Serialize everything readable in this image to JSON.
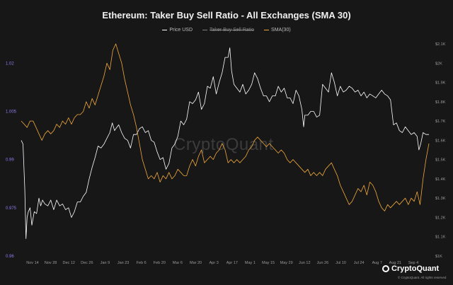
{
  "chart_data": {
    "type": "line",
    "title": "Ethereum: Taker Buy Sell Ratio - All Exchanges (SMA 30)",
    "legend_position": "top-center",
    "grid": false,
    "x_ticks": [
      "Nov 14",
      "Nov 28",
      "Dec 12",
      "Dec 26",
      "Jan 9",
      "Jan 23",
      "Feb 6",
      "Feb 20",
      "Mar 6",
      "Mar 20",
      "Apr 3",
      "Apr 17",
      "May 1",
      "May 15",
      "May 29",
      "Jun 12",
      "Jun 26",
      "Jul 10",
      "Jul 24",
      "Aug 7",
      "Aug 21",
      "Sep 4"
    ],
    "left_axis": {
      "ticks": [
        "1.02",
        "1.005",
        "0.99",
        "0.975",
        "0.96"
      ],
      "range": [
        0.96,
        1.026
      ]
    },
    "right_axis": {
      "ticks": [
        "$2.1K",
        "$2K",
        "$1.9K",
        "$1.8K",
        "$1.7K",
        "$1.6K",
        "$1.5K",
        "$1.4K",
        "$1.3K",
        "$1.2K",
        "$1.1K",
        "$1K"
      ],
      "range": [
        1000,
        2100
      ]
    },
    "series": [
      {
        "name": "Price USD",
        "axis": "right",
        "color": "#ffffff",
        "visible": true,
        "points": [
          [
            0,
            1600
          ],
          [
            0.3,
            1580
          ],
          [
            0.6,
            1350
          ],
          [
            0.8,
            1090
          ],
          [
            1.0,
            1200
          ],
          [
            1.2,
            1230
          ],
          [
            1.5,
            1250
          ],
          [
            1.8,
            1160
          ],
          [
            2.2,
            1230
          ],
          [
            2.6,
            1220
          ],
          [
            3.0,
            1300
          ],
          [
            3.3,
            1260
          ],
          [
            3.6,
            1290
          ],
          [
            4.0,
            1270
          ],
          [
            4.5,
            1260
          ],
          [
            5.0,
            1290
          ],
          [
            5.5,
            1240
          ],
          [
            6.0,
            1290
          ],
          [
            6.5,
            1260
          ],
          [
            7.0,
            1270
          ],
          [
            7.5,
            1240
          ],
          [
            8.0,
            1250
          ],
          [
            8.5,
            1200
          ],
          [
            9.0,
            1230
          ],
          [
            9.5,
            1280
          ],
          [
            10.0,
            1280
          ],
          [
            10.5,
            1310
          ],
          [
            11.0,
            1330
          ],
          [
            11.5,
            1400
          ],
          [
            12.0,
            1460
          ],
          [
            12.5,
            1510
          ],
          [
            13.0,
            1570
          ],
          [
            13.5,
            1560
          ],
          [
            14.0,
            1580
          ],
          [
            14.5,
            1610
          ],
          [
            15.0,
            1640
          ],
          [
            15.4,
            1690
          ],
          [
            15.8,
            1650
          ],
          [
            16.0,
            1660
          ],
          [
            16.5,
            1680
          ],
          [
            17.0,
            1640
          ],
          [
            17.5,
            1610
          ],
          [
            18.0,
            1600
          ],
          [
            18.5,
            1560
          ],
          [
            19.0,
            1630
          ],
          [
            19.5,
            1630
          ],
          [
            20.0,
            1660
          ],
          [
            20.5,
            1670
          ],
          [
            21.0,
            1640
          ],
          [
            21.5,
            1650
          ],
          [
            22.0,
            1600
          ],
          [
            22.5,
            1590
          ],
          [
            23.0,
            1540
          ],
          [
            23.5,
            1500
          ],
          [
            24.0,
            1510
          ],
          [
            24.5,
            1450
          ],
          [
            25.0,
            1480
          ],
          [
            25.5,
            1560
          ],
          [
            26.0,
            1580
          ],
          [
            26.5,
            1620
          ],
          [
            27.0,
            1700
          ],
          [
            27.5,
            1680
          ],
          [
            28.0,
            1710
          ],
          [
            28.5,
            1800
          ],
          [
            29.0,
            1790
          ],
          [
            29.5,
            1810
          ],
          [
            30.0,
            1850
          ],
          [
            30.5,
            1760
          ],
          [
            31.0,
            1790
          ],
          [
            31.5,
            1880
          ],
          [
            32.0,
            1870
          ],
          [
            32.5,
            1930
          ],
          [
            33.0,
            1840
          ],
          [
            33.5,
            1900
          ],
          [
            34.0,
            1950
          ],
          [
            34.5,
            2030
          ],
          [
            35.0,
            2030
          ],
          [
            35.3,
            2080
          ],
          [
            35.6,
            1960
          ],
          [
            36.0,
            1890
          ],
          [
            36.5,
            1870
          ],
          [
            37.0,
            1850
          ],
          [
            37.5,
            1890
          ],
          [
            38.0,
            1840
          ],
          [
            38.5,
            1860
          ],
          [
            39.0,
            1890
          ],
          [
            39.5,
            1950
          ],
          [
            40.0,
            1920
          ],
          [
            40.5,
            1870
          ],
          [
            41.0,
            1830
          ],
          [
            41.5,
            1830
          ],
          [
            42.0,
            1800
          ],
          [
            42.5,
            1830
          ],
          [
            43.0,
            1830
          ],
          [
            43.5,
            1880
          ],
          [
            44.0,
            1850
          ],
          [
            44.5,
            1870
          ],
          [
            45.0,
            1820
          ],
          [
            45.5,
            1820
          ],
          [
            46.0,
            1790
          ],
          [
            46.5,
            1860
          ],
          [
            47.0,
            1830
          ],
          [
            47.5,
            1760
          ],
          [
            47.8,
            1670
          ],
          [
            48.0,
            1730
          ],
          [
            48.5,
            1730
          ],
          [
            49.0,
            1750
          ],
          [
            49.5,
            1750
          ],
          [
            50.0,
            1720
          ],
          [
            50.5,
            1730
          ],
          [
            51.0,
            1890
          ],
          [
            51.5,
            1870
          ],
          [
            52.0,
            1850
          ],
          [
            52.5,
            1950
          ],
          [
            53.0,
            1900
          ],
          [
            53.5,
            1830
          ],
          [
            54.0,
            1880
          ],
          [
            54.5,
            1850
          ],
          [
            55.0,
            1860
          ],
          [
            55.5,
            1880
          ],
          [
            56.0,
            1870
          ],
          [
            56.5,
            1850
          ],
          [
            57.0,
            1860
          ],
          [
            57.5,
            1830
          ],
          [
            58.0,
            1850
          ],
          [
            58.5,
            1820
          ],
          [
            59.0,
            1840
          ],
          [
            59.5,
            1830
          ],
          [
            60.0,
            1820
          ],
          [
            60.5,
            1840
          ],
          [
            61.0,
            1860
          ],
          [
            61.5,
            1840
          ],
          [
            62.0,
            1830
          ],
          [
            62.5,
            1810
          ],
          [
            63.0,
            1680
          ],
          [
            63.5,
            1690
          ],
          [
            64.0,
            1650
          ],
          [
            64.5,
            1640
          ],
          [
            65.0,
            1670
          ],
          [
            65.5,
            1650
          ],
          [
            66.0,
            1630
          ],
          [
            66.5,
            1640
          ],
          [
            67.0,
            1620
          ],
          [
            67.3,
            1550
          ],
          [
            67.6,
            1580
          ],
          [
            68.0,
            1640
          ],
          [
            68.5,
            1630
          ],
          [
            69.0,
            1630
          ]
        ]
      },
      {
        "name": "Taker Buy Sell Ratio",
        "axis": "left",
        "color": "#7d7d7d",
        "visible": false,
        "points": []
      },
      {
        "name": "SMA(30)",
        "axis": "left",
        "color": "#f2a93b",
        "visible": true,
        "points": [
          [
            0,
            1.002
          ],
          [
            0.5,
            1.001
          ],
          [
            1.0,
            1.0
          ],
          [
            1.5,
            1.002
          ],
          [
            2.0,
            1.002
          ],
          [
            2.5,
            1.0
          ],
          [
            3.0,
            0.998
          ],
          [
            3.5,
            0.996
          ],
          [
            4.0,
            0.998
          ],
          [
            4.5,
            0.999
          ],
          [
            5.0,
            0.998
          ],
          [
            5.5,
            0.999
          ],
          [
            6.0,
            1.001
          ],
          [
            6.5,
            1.0
          ],
          [
            7.0,
            1.002
          ],
          [
            7.5,
            1.001
          ],
          [
            8.0,
            1.003
          ],
          [
            8.5,
            1.001
          ],
          [
            9.0,
            1.003
          ],
          [
            9.5,
            1.004
          ],
          [
            10.0,
            1.004
          ],
          [
            10.5,
            1.005
          ],
          [
            11.0,
            1.008
          ],
          [
            11.5,
            1.006
          ],
          [
            12.0,
            1.009
          ],
          [
            12.5,
            1.007
          ],
          [
            13.0,
            1.01
          ],
          [
            13.5,
            1.013
          ],
          [
            14.0,
            1.016
          ],
          [
            14.5,
            1.02
          ],
          [
            15.0,
            1.018
          ],
          [
            15.5,
            1.024
          ],
          [
            16.0,
            1.026
          ],
          [
            16.5,
            1.023
          ],
          [
            17.0,
            1.02
          ],
          [
            17.5,
            1.015
          ],
          [
            18.0,
            1.011
          ],
          [
            18.5,
            1.007
          ],
          [
            19.0,
            1.004
          ],
          [
            19.5,
            1.0
          ],
          [
            20.0,
            0.995
          ],
          [
            20.5,
            0.99
          ],
          [
            21.0,
            0.987
          ],
          [
            21.5,
            0.984
          ],
          [
            22.0,
            0.985
          ],
          [
            22.5,
            0.984
          ],
          [
            23.0,
            0.986
          ],
          [
            23.5,
            0.983
          ],
          [
            24.0,
            0.985
          ],
          [
            24.5,
            0.984
          ],
          [
            25.0,
            0.986
          ],
          [
            25.5,
            0.984
          ],
          [
            26.0,
            0.985
          ],
          [
            26.5,
            0.987
          ],
          [
            27.0,
            0.986
          ],
          [
            27.5,
            0.985
          ],
          [
            28.0,
            0.985
          ],
          [
            28.5,
            0.988
          ],
          [
            29.0,
            0.99
          ],
          [
            29.5,
            0.988
          ],
          [
            30.0,
            0.991
          ],
          [
            30.5,
            0.993
          ],
          [
            31.0,
            0.989
          ],
          [
            31.5,
            0.99
          ],
          [
            32.0,
            0.991
          ],
          [
            32.5,
            0.99
          ],
          [
            33.0,
            0.992
          ],
          [
            33.5,
            0.993
          ],
          [
            34.0,
            0.995
          ],
          [
            34.5,
            0.993
          ],
          [
            35.0,
            0.989
          ],
          [
            35.5,
            0.99
          ],
          [
            36.0,
            0.989
          ],
          [
            36.5,
            0.99
          ],
          [
            37.0,
            0.989
          ],
          [
            37.5,
            0.99
          ],
          [
            38.0,
            0.991
          ],
          [
            38.5,
            0.993
          ],
          [
            39.0,
            0.994
          ],
          [
            39.5,
            0.996
          ],
          [
            40.0,
            0.997
          ],
          [
            40.5,
            0.996
          ],
          [
            41.0,
            0.995
          ],
          [
            41.5,
            0.994
          ],
          [
            42.0,
            0.995
          ],
          [
            42.5,
            0.994
          ],
          [
            43.0,
            0.993
          ],
          [
            43.5,
            0.992
          ],
          [
            44.0,
            0.993
          ],
          [
            44.5,
            0.992
          ],
          [
            45.0,
            0.99
          ],
          [
            45.5,
            0.989
          ],
          [
            46.0,
            0.99
          ],
          [
            46.5,
            0.989
          ],
          [
            47.0,
            0.988
          ],
          [
            47.5,
            0.987
          ],
          [
            48.0,
            0.986
          ],
          [
            48.5,
            0.987
          ],
          [
            49.0,
            0.985
          ],
          [
            49.5,
            0.986
          ],
          [
            50.0,
            0.985
          ],
          [
            50.5,
            0.986
          ],
          [
            51.0,
            0.985
          ],
          [
            51.5,
            0.987
          ],
          [
            52.0,
            0.988
          ],
          [
            52.5,
            0.989
          ],
          [
            53.0,
            0.987
          ],
          [
            53.5,
            0.985
          ],
          [
            54.0,
            0.982
          ],
          [
            54.5,
            0.98
          ],
          [
            55.0,
            0.978
          ],
          [
            55.5,
            0.976
          ],
          [
            56.0,
            0.977
          ],
          [
            56.5,
            0.979
          ],
          [
            57.0,
            0.981
          ],
          [
            57.5,
            0.98
          ],
          [
            58.0,
            0.982
          ],
          [
            58.5,
            0.979
          ],
          [
            59.0,
            0.983
          ],
          [
            59.5,
            0.982
          ],
          [
            60.0,
            0.98
          ],
          [
            60.5,
            0.977
          ],
          [
            61.0,
            0.975
          ],
          [
            61.5,
            0.974
          ],
          [
            62.0,
            0.976
          ],
          [
            62.5,
            0.975
          ],
          [
            63.0,
            0.976
          ],
          [
            63.5,
            0.977
          ],
          [
            64.0,
            0.976
          ],
          [
            64.5,
            0.977
          ],
          [
            65.0,
            0.978
          ],
          [
            65.5,
            0.976
          ],
          [
            66.0,
            0.978
          ],
          [
            66.5,
            0.977
          ],
          [
            67.0,
            0.98
          ],
          [
            67.5,
            0.976
          ],
          [
            68.0,
            0.984
          ],
          [
            68.5,
            0.99
          ],
          [
            69.0,
            0.995
          ]
        ]
      }
    ]
  },
  "watermark": "CryptoQuant",
  "brand": {
    "name": "CryptoQuant",
    "note": "© CryptoQuant. All rights reserved"
  }
}
